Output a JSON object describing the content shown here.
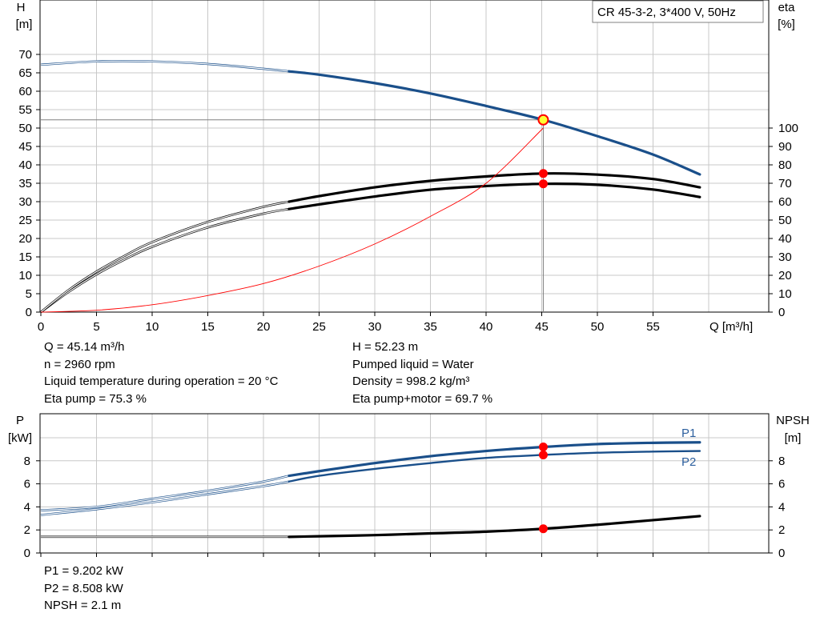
{
  "top_chart": {
    "y_left_label": [
      "H",
      "[m]"
    ],
    "y_right_label": [
      "eta",
      "[%]"
    ],
    "x_label": "Q [m³/h]",
    "legend": "CR 45-3-2, 3*400 V, 50Hz",
    "x_ticks": [
      "0",
      "5",
      "10",
      "15",
      "20",
      "25",
      "30",
      "35",
      "40",
      "45",
      "50",
      "55"
    ],
    "y_left_ticks": [
      "0",
      "5",
      "10",
      "15",
      "20",
      "25",
      "30",
      "35",
      "40",
      "45",
      "50",
      "55",
      "60",
      "65",
      "70"
    ],
    "y_right_ticks": [
      "0",
      "10",
      "20",
      "30",
      "40",
      "50",
      "60",
      "70",
      "80",
      "90",
      "100"
    ]
  },
  "info_left": [
    "Q = 45.14 m³/h",
    "n = 2960 rpm",
    "Liquid temperature during operation = 20 °C",
    "Eta pump = 75.3 %"
  ],
  "info_right": [
    "H = 52.23 m",
    "Pumped liquid = Water",
    "Density = 998.2 kg/m³",
    "Eta pump+motor = 69.7 %"
  ],
  "bottom_chart": {
    "y_left_label": [
      "P",
      "[kW]"
    ],
    "y_right_label": [
      "NPSH",
      "[m]"
    ],
    "y_left_ticks": [
      "0",
      "2",
      "4",
      "6",
      "8"
    ],
    "y_right_ticks": [
      "0",
      "2",
      "4",
      "6",
      "8"
    ],
    "p1_label": "P1",
    "p2_label": "P2"
  },
  "info_bottom": [
    "P1 = 9.202 kW",
    "P2 = 8.508 kW",
    "NPSH = 2.1 m"
  ],
  "colors": {
    "blue": "#1a4f8a",
    "label_blue": "#2c5f9e",
    "red": "#ff0000",
    "grid": "#c8c8c8",
    "marker_yellow": "#ffff33"
  },
  "chart_data": [
    {
      "type": "line",
      "xlabel": "Q [m³/h]",
      "ylabel": "H [m]",
      "y2label": "eta [%]",
      "xlim": [
        0,
        64
      ],
      "ylim": [
        0,
        74
      ],
      "y2lim": [
        0,
        100
      ],
      "series": [
        {
          "name": "H",
          "axis": "left",
          "color": "blue",
          "weight": "heavy",
          "thin_below_x": 22.3,
          "points": [
            [
              0,
              67.2
            ],
            [
              5,
              68.1
            ],
            [
              10,
              68.1
            ],
            [
              15,
              67.4
            ],
            [
              20,
              66.1
            ],
            [
              22.3,
              65.4
            ],
            [
              25,
              64.5
            ],
            [
              30,
              62.2
            ],
            [
              35,
              59.4
            ],
            [
              40,
              56.0
            ],
            [
              45.14,
              52.23
            ],
            [
              50,
              47.8
            ],
            [
              55,
              42.8
            ],
            [
              59.2,
              37.4
            ]
          ]
        },
        {
          "axis": "right",
          "color": "black",
          "weight": "heavy",
          "thin_below_x": 22.3,
          "points": [
            [
              0,
              0
            ],
            [
              2.5,
              11
            ],
            [
              5,
              20.5
            ],
            [
              7.5,
              28.5
            ],
            [
              10,
              35.5
            ],
            [
              15,
              46
            ],
            [
              20,
              53.5
            ],
            [
              22.3,
              56
            ],
            [
              25,
              58.5
            ],
            [
              30,
              62.8
            ],
            [
              35,
              66.5
            ],
            [
              40,
              68.5
            ],
            [
              45.14,
              69.7
            ],
            [
              50,
              69.2
            ],
            [
              55,
              66.6
            ],
            [
              59.2,
              62.5
            ]
          ]
        },
        {
          "axis": "right",
          "color": "black",
          "weight": "heavy",
          "thin_below_x": 22.3,
          "points": [
            [
              0,
              0
            ],
            [
              2.5,
              12
            ],
            [
              5,
              22
            ],
            [
              7.5,
              30.5
            ],
            [
              10,
              38
            ],
            [
              15,
              49
            ],
            [
              20,
              57.2
            ],
            [
              22.3,
              60
            ],
            [
              25,
              63
            ],
            [
              30,
              67.8
            ],
            [
              35,
              71.3
            ],
            [
              40,
              73.7
            ],
            [
              45.14,
              75.3
            ],
            [
              50,
              74.7
            ],
            [
              55,
              72.3
            ],
            [
              59.2,
              67.8
            ]
          ]
        },
        {
          "axis": "right",
          "color": "red",
          "weight": "thin",
          "points": [
            [
              0,
              0
            ],
            [
              5,
              1
            ],
            [
              10,
              4
            ],
            [
              15,
              9
            ],
            [
              20,
              15.5
            ],
            [
              25,
              25
            ],
            [
              30,
              37
            ],
            [
              35,
              52
            ],
            [
              40,
              70
            ],
            [
              45.14,
              100
            ]
          ]
        }
      ],
      "duty_point": {
        "Q": 45.14,
        "H": 52.23,
        "eta_pump": 75.3,
        "eta_pump_motor": 69.7
      }
    },
    {
      "type": "line",
      "ylabel": "P [kW]",
      "y2label": "NPSH [m]",
      "xlim": [
        0,
        64
      ],
      "ylim": [
        0,
        10
      ],
      "y2lim": [
        0,
        10
      ],
      "series": [
        {
          "name": "P1",
          "axis": "left",
          "color": "blue",
          "weight": "heavy",
          "thin_below_x": 22.3,
          "points": [
            [
              0,
              3.7
            ],
            [
              5,
              4.0
            ],
            [
              10,
              4.7
            ],
            [
              15,
              5.4
            ],
            [
              20,
              6.2
            ],
            [
              22.3,
              6.7
            ],
            [
              25,
              7.1
            ],
            [
              30,
              7.8
            ],
            [
              35,
              8.4
            ],
            [
              40,
              8.85
            ],
            [
              45.14,
              9.202
            ],
            [
              50,
              9.45
            ],
            [
              55,
              9.56
            ],
            [
              59.2,
              9.6
            ]
          ]
        },
        {
          "name": "P2",
          "axis": "left",
          "color": "blue",
          "weight": "medium",
          "thin_below_x": 22.3,
          "points": [
            [
              0,
              3.3
            ],
            [
              5,
              3.8
            ],
            [
              10,
              4.4
            ],
            [
              15,
              5.1
            ],
            [
              20,
              5.8
            ],
            [
              22.3,
              6.2
            ],
            [
              25,
              6.7
            ],
            [
              30,
              7.3
            ],
            [
              35,
              7.8
            ],
            [
              40,
              8.25
            ],
            [
              45.14,
              8.508
            ],
            [
              50,
              8.7
            ],
            [
              55,
              8.8
            ],
            [
              59.2,
              8.85
            ]
          ]
        },
        {
          "name": "NPSH",
          "axis": "right",
          "color": "black",
          "weight": "heavy",
          "thin_below_x": 22.3,
          "points": [
            [
              0,
              1.4
            ],
            [
              10,
              1.4
            ],
            [
              22.3,
              1.4
            ],
            [
              25,
              1.45
            ],
            [
              30,
              1.55
            ],
            [
              35,
              1.7
            ],
            [
              40,
              1.85
            ],
            [
              45.14,
              2.1
            ],
            [
              50,
              2.45
            ],
            [
              55,
              2.85
            ],
            [
              59.2,
              3.2
            ]
          ]
        }
      ],
      "duty_point": {
        "Q": 45.14,
        "P1": 9.202,
        "P2": 8.508,
        "NPSH": 2.1
      }
    }
  ],
  "duty_point_Q": 45.14
}
